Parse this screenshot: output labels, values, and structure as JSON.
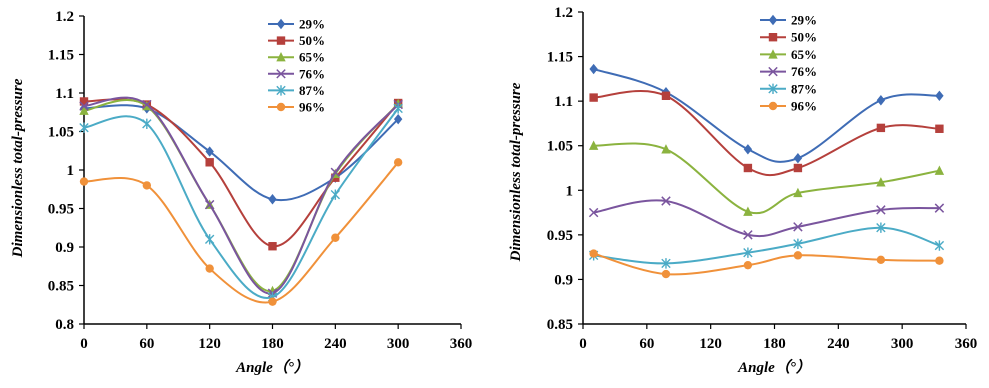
{
  "chart_data": [
    {
      "type": "line",
      "title": "",
      "xlabel": "Angle（°）",
      "ylabel": "Dimensionless total-pressure",
      "xlim": [
        0,
        360
      ],
      "ylim": [
        0.8,
        1.2
      ],
      "xticks": [
        0,
        60,
        120,
        180,
        240,
        300,
        360
      ],
      "yticks": [
        0.8,
        0.85,
        0.9,
        0.95,
        1,
        1.05,
        1.1,
        1.15,
        1.2
      ],
      "ytick_labels": [
        "0.8",
        "0.85",
        "0.9",
        "0.95",
        "1",
        "1.05",
        "1.1",
        "1.15",
        "1.2"
      ],
      "grid": false,
      "legend_position": "top-right",
      "x": [
        0,
        60,
        120,
        180,
        240,
        300
      ],
      "series": [
        {
          "name": "29%",
          "color": "#3F6CB5",
          "marker": "diamond",
          "values": [
            1.08,
            1.08,
            1.024,
            0.962,
            0.99,
            1.066
          ]
        },
        {
          "name": "50%",
          "color": "#B5403C",
          "marker": "square",
          "values": [
            1.089,
            1.085,
            1.01,
            0.901,
            0.99,
            1.087
          ]
        },
        {
          "name": "65%",
          "color": "#8BB33F",
          "marker": "triangle",
          "values": [
            1.077,
            1.083,
            0.955,
            0.843,
            0.995,
            1.086
          ]
        },
        {
          "name": "76%",
          "color": "#7A559E",
          "marker": "x",
          "values": [
            1.083,
            1.085,
            0.955,
            0.84,
            0.997,
            1.085
          ]
        },
        {
          "name": "87%",
          "color": "#4BABC6",
          "marker": "star",
          "values": [
            1.055,
            1.06,
            0.91,
            0.835,
            0.968,
            1.08
          ]
        },
        {
          "name": "96%",
          "color": "#F0913A",
          "marker": "circle",
          "values": [
            0.985,
            0.98,
            0.872,
            0.829,
            0.912,
            1.01
          ]
        }
      ]
    },
    {
      "type": "line",
      "title": "",
      "xlabel": "Angle（°）",
      "ylabel": "Dimensionless total-pressure",
      "xlim": [
        0,
        360
      ],
      "ylim": [
        0.85,
        1.2
      ],
      "xticks": [
        0,
        60,
        120,
        180,
        240,
        300,
        360
      ],
      "yticks": [
        0.85,
        0.9,
        0.95,
        1,
        1.05,
        1.1,
        1.15,
        1.2
      ],
      "ytick_labels": [
        "0.85",
        "0.9",
        "0.95",
        "1",
        "1.05",
        "1.1",
        "1.15",
        "1.2"
      ],
      "grid": false,
      "legend_position": "top-center",
      "x": [
        10,
        78,
        155,
        202,
        280,
        335
      ],
      "series": [
        {
          "name": "29%",
          "color": "#3F6CB5",
          "marker": "diamond",
          "values": [
            1.136,
            1.11,
            1.046,
            1.036,
            1.101,
            1.106
          ]
        },
        {
          "name": "50%",
          "color": "#B5403C",
          "marker": "square",
          "values": [
            1.104,
            1.106,
            1.025,
            1.025,
            1.07,
            1.069
          ]
        },
        {
          "name": "65%",
          "color": "#8BB33F",
          "marker": "triangle",
          "values": [
            1.05,
            1.046,
            0.976,
            0.997,
            1.009,
            1.022
          ]
        },
        {
          "name": "76%",
          "color": "#7A559E",
          "marker": "x",
          "values": [
            0.975,
            0.988,
            0.95,
            0.959,
            0.978,
            0.98
          ]
        },
        {
          "name": "87%",
          "color": "#4BABC6",
          "marker": "star",
          "values": [
            0.927,
            0.918,
            0.93,
            0.94,
            0.958,
            0.938
          ]
        },
        {
          "name": "96%",
          "color": "#F0913A",
          "marker": "circle",
          "values": [
            0.929,
            0.906,
            0.916,
            0.927,
            0.922,
            0.921
          ]
        }
      ]
    }
  ]
}
